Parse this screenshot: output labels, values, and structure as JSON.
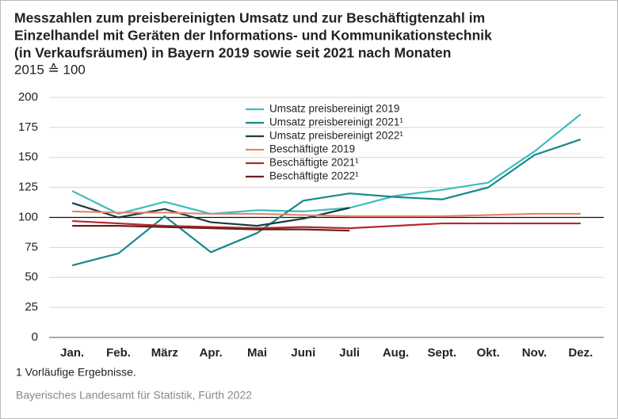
{
  "chart_data": {
    "type": "line",
    "title": [
      "Messzahlen zum preisbereinigten Umsatz und zur Beschäftigtenzahl im",
      "Einzelhandel mit Geräten der Informations- und Kommunikationstechnik",
      "(in Verkaufsräumen) in Bayern 2019 sowie seit 2021 nach Monaten"
    ],
    "subtitle": "2015 ≙ 100",
    "categories": [
      "Jan.",
      "Feb.",
      "März",
      "Apr.",
      "Mai",
      "Juni",
      "Juli",
      "Aug.",
      "Sept.",
      "Okt.",
      "Nov.",
      "Dez."
    ],
    "series": [
      {
        "name": "Umsatz preisbereinigt 2019",
        "color": "#3dbdbd",
        "values": [
          122,
          103,
          113,
          103,
          106,
          105,
          108,
          118,
          123,
          129,
          155,
          186
        ]
      },
      {
        "name": "Umsatz preisbereinigt 2021¹",
        "color": "#17898a",
        "values": [
          60,
          70,
          101,
          71,
          87,
          114,
          120,
          117,
          115,
          125,
          152,
          165
        ]
      },
      {
        "name": "Umsatz preisbereinigt 2022¹",
        "color": "#1d3b3b",
        "values": [
          112,
          100,
          107,
          96,
          93,
          99,
          108,
          null,
          null,
          null,
          null,
          null
        ]
      },
      {
        "name": "Beschäftigte 2019",
        "color": "#e8836e",
        "values": [
          105,
          104,
          104,
          103,
          103,
          102,
          101,
          101,
          101,
          102,
          103,
          103
        ]
      },
      {
        "name": "Beschäftigte 2021¹",
        "color": "#b22a2a",
        "values": [
          97,
          95,
          93,
          92,
          91,
          92,
          91,
          93,
          95,
          95,
          95,
          95
        ]
      },
      {
        "name": "Beschäftigte 2022¹",
        "color": "#6b1e1e",
        "values": [
          93,
          93,
          92,
          91,
          90,
          90,
          89,
          null,
          null,
          null,
          null,
          null
        ]
      }
    ],
    "ylim": [
      0,
      200
    ],
    "yticks": [
      0,
      25,
      50,
      75,
      100,
      125,
      150,
      175,
      200
    ],
    "grid": true,
    "reference_line": 100,
    "footnote": "1  Vorläufige Ergebnisse.",
    "source": "Bayerisches Landesamt für Statistik, Fürth 2022"
  }
}
